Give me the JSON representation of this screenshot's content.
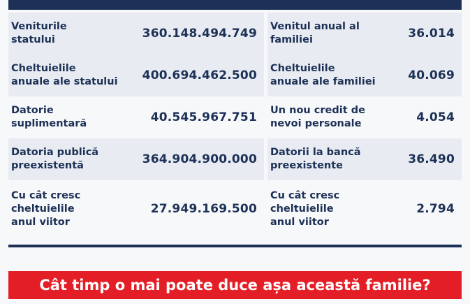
{
  "colors": {
    "navy": "#1d3156",
    "shade": "#e8ecf2",
    "banner_red": "#e41e26"
  },
  "rows": [
    {
      "state_label": "Veniturile\nstatului",
      "state_value": "360.148.494.749",
      "family_label": "Venitul anual al\nfamiliei",
      "family_value": "36.014"
    },
    {
      "state_label": "Cheltuielile\nanuale ale statului",
      "state_value": "400.694.462.500",
      "family_label": "Cheltuielile\nanuale ale familiei",
      "family_value": "40.069"
    },
    {
      "state_label": "Datorie\nsuplimentară",
      "state_value": "40.545.967.751",
      "family_label": "Un nou credit de\nnevoi personale",
      "family_value": "4.054"
    },
    {
      "state_label": "Datoria publică\npreexistentă",
      "state_value": "364.904.900.000",
      "family_label": "Datorii la bancă\npreexistente",
      "family_value": "36.490"
    },
    {
      "state_label": "Cu cât cresc\ncheltuielile\nanul viitor",
      "state_value": "27.949.169.500",
      "family_label": "Cu cât cresc\ncheltuielile\nanul viitor",
      "family_value": "2.794"
    }
  ],
  "banner": {
    "text": "Cât timp o mai poate duce așa această familie?"
  }
}
